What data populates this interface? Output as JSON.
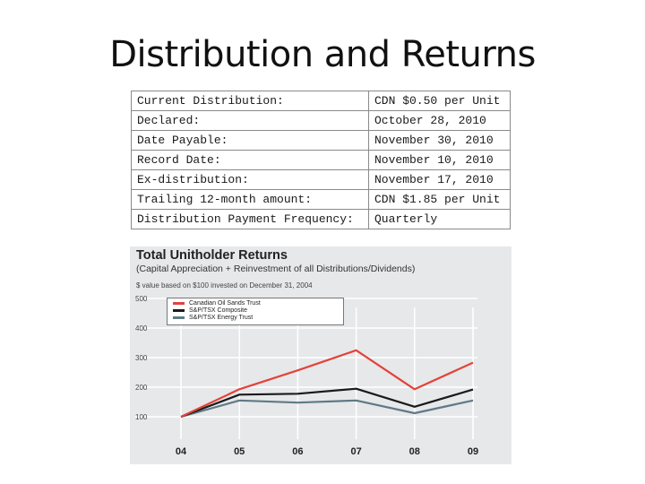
{
  "slide": {
    "title": "Distribution and Returns"
  },
  "distribution_table": {
    "rows": [
      [
        "Current Distribution:",
        "CDN $0.50 per Unit"
      ],
      [
        "Declared:",
        "October 28, 2010"
      ],
      [
        "Date Payable:",
        "November 30, 2010"
      ],
      [
        "Record Date:",
        "November 10, 2010"
      ],
      [
        "Ex-distribution:",
        "November 17, 2010"
      ],
      [
        "Trailing 12-month amount:",
        "CDN $1.85 per Unit"
      ],
      [
        "Distribution Payment Frequency:",
        "Quarterly"
      ]
    ]
  },
  "chart_data": {
    "type": "line",
    "title": "Total Unitholder Returns",
    "subtitle": "(Capital Appreciation + Reinvestment of all Distributions/Dividends)",
    "note": "$ value based on $100 invested on December 31, 2004",
    "x": [
      "04",
      "05",
      "06",
      "07",
      "08",
      "09"
    ],
    "ylim": [
      100,
      500
    ],
    "yticks": [
      100,
      200,
      300,
      400,
      500
    ],
    "legend_placement": "top-left",
    "grid": true,
    "series": [
      {
        "name": "Canadian Oil Sands Trust",
        "color": "#e2433a",
        "values": [
          100,
          193,
          257,
          325,
          193,
          283
        ]
      },
      {
        "name": "S&P/TSX Composite",
        "color": "#1a1a1a",
        "values": [
          100,
          175,
          178,
          195,
          134,
          192
        ]
      },
      {
        "name": "S&P/TSX Energy Trust",
        "color": "#5f7a86",
        "values": [
          100,
          155,
          148,
          155,
          112,
          155
        ]
      }
    ]
  }
}
